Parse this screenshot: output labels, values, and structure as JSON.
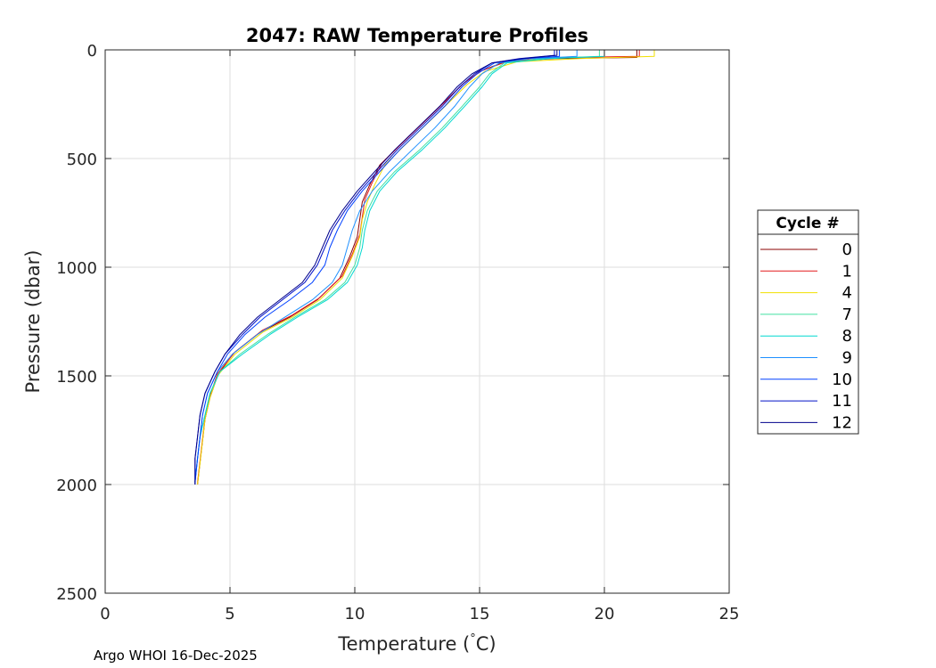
{
  "chart_data": {
    "type": "line",
    "title": "2047: RAW Temperature Profiles",
    "xlabel": "Temperature (",
    "xlabel_degree": "°",
    "xlabel_unit": "C)",
    "ylabel": "Pressure (dbar)",
    "xlim": [
      0,
      25
    ],
    "ylim": [
      0,
      2500
    ],
    "y_reversed": true,
    "grid": true,
    "x_ticks": [
      0,
      5,
      10,
      15,
      20,
      25
    ],
    "y_ticks": [
      0,
      500,
      1000,
      1500,
      2000,
      2500
    ],
    "legend": {
      "title": "Cycle #",
      "placement": "outside-right"
    },
    "footer": "Argo WHOI 16-Dec-2025",
    "series": [
      {
        "name": "0",
        "color": "#8b0000",
        "points": [
          [
            21.3,
            0
          ],
          [
            21.3,
            35
          ],
          [
            18.0,
            40
          ],
          [
            16.0,
            55
          ],
          [
            15.0,
            100
          ],
          [
            14.3,
            160
          ],
          [
            13.5,
            250
          ],
          [
            12.6,
            350
          ],
          [
            11.7,
            450
          ],
          [
            11.0,
            530
          ],
          [
            10.6,
            620
          ],
          [
            10.3,
            700
          ],
          [
            10.2,
            780
          ],
          [
            10.1,
            860
          ],
          [
            9.8,
            950
          ],
          [
            9.4,
            1050
          ],
          [
            8.5,
            1150
          ],
          [
            7.4,
            1230
          ],
          [
            6.2,
            1300
          ],
          [
            5.1,
            1400
          ],
          [
            4.5,
            1500
          ],
          [
            4.2,
            1600
          ],
          [
            4.0,
            1700
          ],
          [
            3.9,
            1800
          ],
          [
            3.8,
            1900
          ],
          [
            3.7,
            2000
          ]
        ]
      },
      {
        "name": "1",
        "color": "#e41a1c",
        "points": [
          [
            21.4,
            0
          ],
          [
            21.4,
            30
          ],
          [
            18.5,
            35
          ],
          [
            16.2,
            50
          ],
          [
            15.1,
            95
          ],
          [
            14.4,
            150
          ],
          [
            13.6,
            240
          ],
          [
            12.7,
            340
          ],
          [
            11.8,
            440
          ],
          [
            11.1,
            520
          ],
          [
            10.7,
            610
          ],
          [
            10.4,
            690
          ],
          [
            10.3,
            770
          ],
          [
            10.2,
            850
          ],
          [
            9.9,
            940
          ],
          [
            9.5,
            1040
          ],
          [
            8.6,
            1140
          ],
          [
            7.5,
            1220
          ],
          [
            6.3,
            1290
          ],
          [
            5.2,
            1390
          ],
          [
            4.5,
            1490
          ],
          [
            4.2,
            1590
          ],
          [
            4.0,
            1690
          ],
          [
            3.9,
            1790
          ],
          [
            3.8,
            1890
          ],
          [
            3.7,
            1990
          ]
        ]
      },
      {
        "name": "4",
        "color": "#f0e000",
        "points": [
          [
            22.0,
            0
          ],
          [
            22.0,
            30
          ],
          [
            19.0,
            40
          ],
          [
            16.5,
            55
          ],
          [
            15.2,
            100
          ],
          [
            14.5,
            160
          ],
          [
            13.7,
            250
          ],
          [
            12.8,
            350
          ],
          [
            11.9,
            450
          ],
          [
            11.2,
            530
          ],
          [
            10.8,
            620
          ],
          [
            10.5,
            700
          ],
          [
            10.3,
            780
          ],
          [
            10.2,
            860
          ],
          [
            9.9,
            950
          ],
          [
            9.5,
            1050
          ],
          [
            8.6,
            1150
          ],
          [
            7.5,
            1230
          ],
          [
            6.3,
            1300
          ],
          [
            5.2,
            1400
          ],
          [
            4.5,
            1500
          ],
          [
            4.2,
            1600
          ],
          [
            4.0,
            1700
          ],
          [
            3.9,
            1800
          ],
          [
            3.8,
            1900
          ],
          [
            3.7,
            2000
          ]
        ]
      },
      {
        "name": "7",
        "color": "#40e0a0",
        "points": [
          [
            19.8,
            0
          ],
          [
            19.8,
            30
          ],
          [
            17.5,
            40
          ],
          [
            16.0,
            60
          ],
          [
            15.4,
            110
          ],
          [
            15.0,
            170
          ],
          [
            14.3,
            260
          ],
          [
            13.5,
            360
          ],
          [
            12.6,
            460
          ],
          [
            11.6,
            560
          ],
          [
            10.9,
            650
          ],
          [
            10.5,
            740
          ],
          [
            10.3,
            830
          ],
          [
            10.2,
            910
          ],
          [
            10.0,
            990
          ],
          [
            9.6,
            1070
          ],
          [
            8.8,
            1150
          ],
          [
            7.6,
            1230
          ],
          [
            6.5,
            1310
          ],
          [
            5.4,
            1400
          ],
          [
            4.6,
            1480
          ],
          [
            4.2,
            1580
          ],
          [
            4.0,
            1680
          ],
          [
            3.8,
            1780
          ],
          [
            3.7,
            1880
          ],
          [
            3.6,
            1990
          ]
        ]
      },
      {
        "name": "8",
        "color": "#00d8d0",
        "points": [
          [
            20.0,
            0
          ],
          [
            20.0,
            30
          ],
          [
            17.8,
            40
          ],
          [
            16.1,
            60
          ],
          [
            15.5,
            110
          ],
          [
            15.1,
            170
          ],
          [
            14.4,
            260
          ],
          [
            13.6,
            360
          ],
          [
            12.7,
            460
          ],
          [
            11.7,
            560
          ],
          [
            11.0,
            650
          ],
          [
            10.6,
            740
          ],
          [
            10.4,
            830
          ],
          [
            10.3,
            910
          ],
          [
            10.1,
            990
          ],
          [
            9.7,
            1070
          ],
          [
            8.9,
            1150
          ],
          [
            7.7,
            1230
          ],
          [
            6.6,
            1310
          ],
          [
            5.5,
            1400
          ],
          [
            4.6,
            1480
          ],
          [
            4.2,
            1580
          ],
          [
            4.0,
            1680
          ],
          [
            3.8,
            1780
          ],
          [
            3.7,
            1880
          ],
          [
            3.6,
            1990
          ]
        ]
      },
      {
        "name": "9",
        "color": "#1e90ff",
        "points": [
          [
            18.9,
            0
          ],
          [
            18.9,
            30
          ],
          [
            17.0,
            40
          ],
          [
            15.8,
            60
          ],
          [
            15.1,
            110
          ],
          [
            14.6,
            170
          ],
          [
            14.0,
            260
          ],
          [
            13.2,
            360
          ],
          [
            12.3,
            460
          ],
          [
            11.4,
            560
          ],
          [
            10.7,
            650
          ],
          [
            10.2,
            740
          ],
          [
            9.9,
            830
          ],
          [
            9.7,
            910
          ],
          [
            9.5,
            990
          ],
          [
            9.1,
            1070
          ],
          [
            8.3,
            1150
          ],
          [
            7.2,
            1230
          ],
          [
            6.1,
            1310
          ],
          [
            5.1,
            1400
          ],
          [
            4.5,
            1480
          ],
          [
            4.1,
            1580
          ],
          [
            3.9,
            1680
          ],
          [
            3.8,
            1780
          ],
          [
            3.7,
            1880
          ],
          [
            3.6,
            1990
          ]
        ]
      },
      {
        "name": "10",
        "color": "#0040ff",
        "points": [
          [
            18.2,
            0
          ],
          [
            18.2,
            30
          ],
          [
            16.8,
            40
          ],
          [
            15.6,
            60
          ],
          [
            14.9,
            110
          ],
          [
            14.3,
            170
          ],
          [
            13.6,
            260
          ],
          [
            12.7,
            360
          ],
          [
            11.8,
            460
          ],
          [
            11.0,
            560
          ],
          [
            10.3,
            650
          ],
          [
            9.7,
            740
          ],
          [
            9.3,
            830
          ],
          [
            9.0,
            910
          ],
          [
            8.8,
            990
          ],
          [
            8.3,
            1070
          ],
          [
            7.4,
            1150
          ],
          [
            6.4,
            1230
          ],
          [
            5.6,
            1310
          ],
          [
            4.9,
            1400
          ],
          [
            4.5,
            1480
          ],
          [
            4.1,
            1580
          ],
          [
            3.9,
            1680
          ],
          [
            3.8,
            1780
          ],
          [
            3.7,
            1880
          ],
          [
            3.6,
            1990
          ]
        ]
      },
      {
        "name": "11",
        "color": "#0010c8",
        "points": [
          [
            18.0,
            0
          ],
          [
            18.0,
            25
          ],
          [
            16.6,
            40
          ],
          [
            15.5,
            60
          ],
          [
            14.8,
            110
          ],
          [
            14.2,
            170
          ],
          [
            13.5,
            260
          ],
          [
            12.6,
            360
          ],
          [
            11.7,
            460
          ],
          [
            10.9,
            560
          ],
          [
            10.2,
            650
          ],
          [
            9.6,
            740
          ],
          [
            9.1,
            830
          ],
          [
            8.8,
            910
          ],
          [
            8.5,
            990
          ],
          [
            8.0,
            1070
          ],
          [
            7.1,
            1150
          ],
          [
            6.2,
            1230
          ],
          [
            5.5,
            1310
          ],
          [
            4.8,
            1400
          ],
          [
            4.4,
            1480
          ],
          [
            4.0,
            1580
          ],
          [
            3.8,
            1680
          ],
          [
            3.7,
            1780
          ],
          [
            3.6,
            1880
          ],
          [
            3.6,
            2000
          ]
        ]
      },
      {
        "name": "12",
        "color": "#00008b",
        "points": [
          [
            18.1,
            0
          ],
          [
            18.1,
            25
          ],
          [
            16.7,
            40
          ],
          [
            15.5,
            60
          ],
          [
            14.7,
            110
          ],
          [
            14.1,
            170
          ],
          [
            13.4,
            260
          ],
          [
            12.5,
            360
          ],
          [
            11.6,
            460
          ],
          [
            10.8,
            560
          ],
          [
            10.1,
            650
          ],
          [
            9.5,
            740
          ],
          [
            9.0,
            830
          ],
          [
            8.7,
            910
          ],
          [
            8.4,
            990
          ],
          [
            7.9,
            1070
          ],
          [
            7.0,
            1150
          ],
          [
            6.1,
            1230
          ],
          [
            5.4,
            1310
          ],
          [
            4.8,
            1400
          ],
          [
            4.4,
            1480
          ],
          [
            4.0,
            1580
          ],
          [
            3.8,
            1680
          ],
          [
            3.7,
            1780
          ],
          [
            3.6,
            1880
          ],
          [
            3.6,
            2000
          ]
        ]
      }
    ]
  }
}
